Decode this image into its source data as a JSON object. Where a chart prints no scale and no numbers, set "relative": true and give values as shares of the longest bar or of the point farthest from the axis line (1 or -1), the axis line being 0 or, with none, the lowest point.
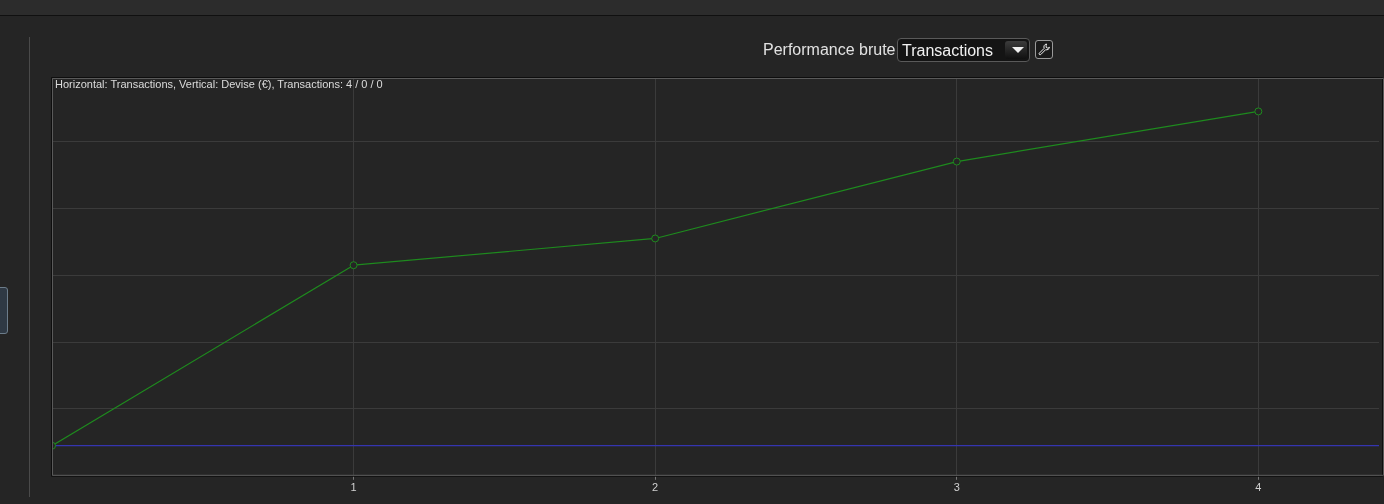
{
  "chart_data": {
    "type": "line",
    "title": "Performance brute",
    "subtitle": "Transactions",
    "annotations": [
      "Horizontal: Transactions, Vertical: Devise (€), Transactions: 4 / 0 / 0"
    ],
    "x": [
      0,
      1,
      2,
      3,
      4
    ],
    "series": [
      {
        "color": "#1e8a1e",
        "values": [
          0,
          0.54,
          0.62,
          0.85,
          1
        ]
      }
    ],
    "relative": true,
    "xlim": [
      0,
      4.4
    ],
    "xticks": [
      1,
      2,
      3,
      4
    ],
    "grid": true,
    "marker": "circle",
    "line_style": "solid",
    "ref_lines": [
      {
        "axis": "y",
        "value": 0,
        "color": "#3535b0"
      }
    ]
  }
}
